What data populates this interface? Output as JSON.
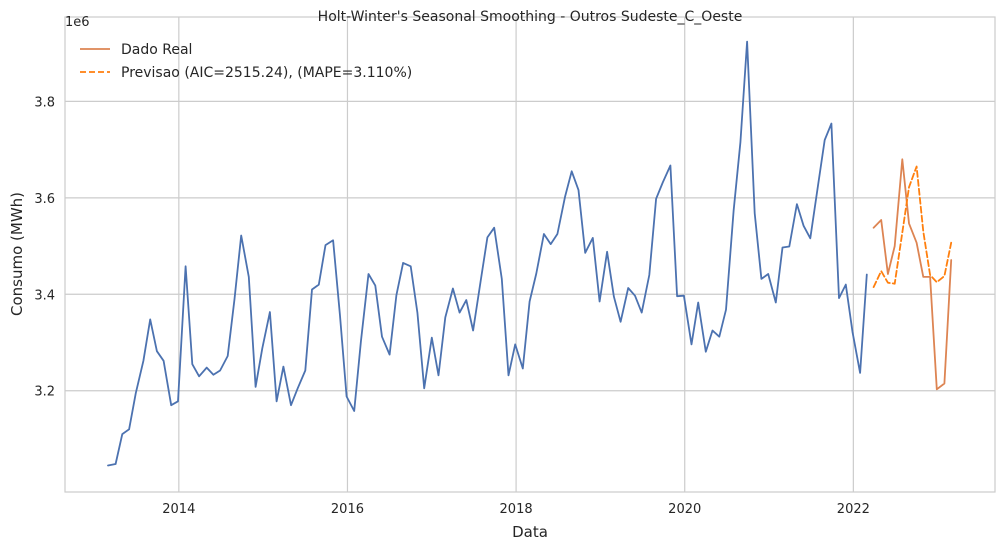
{
  "chart_data": {
    "type": "line",
    "title": "Holt-Winter's Seasonal Smoothing - Outros Sudeste_C_Oeste",
    "xlabel": "Data",
    "ylabel": "Consumo (MWh)",
    "y_offset_text": "1e6",
    "x_tick_labels": [
      "2014",
      "2016",
      "2018",
      "2020",
      "2022"
    ],
    "x_tick_values": [
      2014,
      2016,
      2018,
      2020,
      2022
    ],
    "y_tick_labels": [
      "3.2",
      "3.4",
      "3.6",
      "3.8"
    ],
    "y_tick_values": [
      3200000,
      3400000,
      3600000,
      3800000
    ],
    "xlim": [
      2012.65,
      2023.68
    ],
    "ylim": [
      2990000,
      3975000
    ],
    "grid": true,
    "legend": "top-left",
    "series": [
      {
        "name": "",
        "color": "#4c72b0",
        "dash": "solid",
        "x": [
          2013.16,
          2013.25,
          2013.33,
          2013.41,
          2013.49,
          2013.58,
          2013.66,
          2013.74,
          2013.82,
          2013.91,
          2013.99,
          2014.08,
          2014.16,
          2014.24,
          2014.33,
          2014.41,
          2014.49,
          2014.58,
          2014.66,
          2014.74,
          2014.83,
          2014.91,
          2014.99,
          2015.08,
          2015.16,
          2015.24,
          2015.33,
          2015.41,
          2015.5,
          2015.58,
          2015.66,
          2015.74,
          2015.83,
          2015.91,
          2015.99,
          2016.08,
          2016.16,
          2016.25,
          2016.33,
          2016.41,
          2016.5,
          2016.58,
          2016.66,
          2016.75,
          2016.83,
          2016.91,
          2017.0,
          2017.08,
          2017.16,
          2017.25,
          2017.33,
          2017.41,
          2017.49,
          2017.58,
          2017.66,
          2017.74,
          2017.83,
          2017.91,
          2017.99,
          2018.08,
          2018.16,
          2018.24,
          2018.33,
          2018.41,
          2018.49,
          2018.58,
          2018.66,
          2018.74,
          2018.82,
          2018.91,
          2018.99,
          2019.08,
          2019.16,
          2019.24,
          2019.33,
          2019.41,
          2019.49,
          2019.58,
          2019.66,
          2019.74,
          2019.83,
          2019.91,
          2019.99,
          2020.08,
          2020.16,
          2020.25,
          2020.33,
          2020.41,
          2020.49,
          2020.58,
          2020.66,
          2020.74,
          2020.83,
          2020.91,
          2020.99,
          2021.08,
          2021.16,
          2021.24,
          2021.33,
          2021.41,
          2021.49,
          2021.58,
          2021.66,
          2021.74,
          2021.83,
          2021.91,
          2021.99,
          2022.08,
          2022.16
        ],
        "values": [
          3045000,
          3048000,
          3110000,
          3120000,
          3195000,
          3262000,
          3348000,
          3282000,
          3262000,
          3170000,
          3178000,
          3458000,
          3255000,
          3230000,
          3248000,
          3233000,
          3242000,
          3272000,
          3390000,
          3522000,
          3436000,
          3208000,
          3288000,
          3363000,
          3178000,
          3250000,
          3170000,
          3205000,
          3242000,
          3410000,
          3420000,
          3502000,
          3512000,
          3358000,
          3188000,
          3158000,
          3302000,
          3442000,
          3418000,
          3312000,
          3275000,
          3398000,
          3465000,
          3458000,
          3362000,
          3205000,
          3310000,
          3232000,
          3352000,
          3412000,
          3362000,
          3388000,
          3325000,
          3428000,
          3518000,
          3538000,
          3432000,
          3232000,
          3296000,
          3246000,
          3385000,
          3443000,
          3525000,
          3504000,
          3525000,
          3602000,
          3655000,
          3616000,
          3486000,
          3517000,
          3385000,
          3488000,
          3395000,
          3343000,
          3413000,
          3397000,
          3362000,
          3440000,
          3598000,
          3632000,
          3667000,
          3396000,
          3397000,
          3296000,
          3383000,
          3281000,
          3325000,
          3312000,
          3368000,
          3573000,
          3715000,
          3924000,
          3568000,
          3432000,
          3442000,
          3383000,
          3497000,
          3499000,
          3587000,
          3542000,
          3516000,
          3624000,
          3720000,
          3754000,
          3392000,
          3420000,
          3322000,
          3237000,
          3441000
        ]
      },
      {
        "name": "Dado Real",
        "color": "#dd8452",
        "dash": "solid",
        "x": [
          2022.24,
          2022.33,
          2022.41,
          2022.49,
          2022.58,
          2022.66,
          2022.75,
          2022.83,
          2022.91,
          2022.99,
          2023.08,
          2023.16
        ],
        "values": [
          3538000,
          3554000,
          3442000,
          3500000,
          3680000,
          3547000,
          3507000,
          3436000,
          3436000,
          3203000,
          3215000,
          3471000
        ]
      },
      {
        "name": "Previsao (AIC=2515.24), (MAPE=3.110%)",
        "color": "#ff7f0e",
        "dash": "dashed",
        "x": [
          2022.24,
          2022.33,
          2022.41,
          2022.49,
          2022.58,
          2022.66,
          2022.75,
          2022.83,
          2022.91,
          2022.99,
          2023.08,
          2023.16
        ],
        "values": [
          3415000,
          3448000,
          3424000,
          3422000,
          3528000,
          3622000,
          3665000,
          3530000,
          3440000,
          3425000,
          3438000,
          3507000
        ]
      }
    ]
  }
}
